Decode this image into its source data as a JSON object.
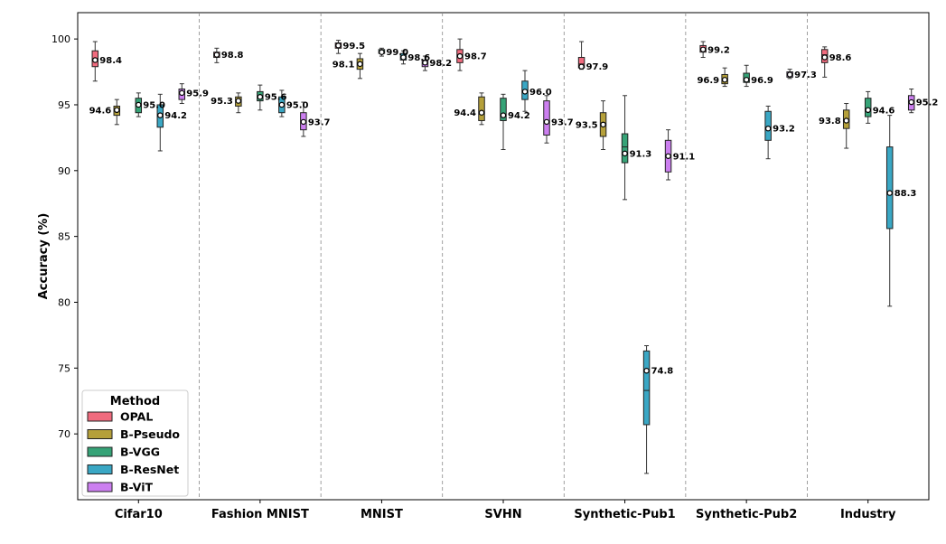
{
  "chart_data": {
    "type": "box",
    "ylabel": "Accuracy (%)",
    "ylim": [
      65,
      102
    ],
    "yticks": [
      70,
      75,
      80,
      85,
      90,
      95,
      100
    ],
    "grid": false,
    "categories": [
      "Cifar10",
      "Fashion MNIST",
      "MNIST",
      "SVHN",
      "Synthetic-Pub1",
      "Synthetic-Pub2",
      "Industry"
    ],
    "legend": {
      "title": "Method",
      "placement": "bottom-left",
      "entries": [
        "OPAL",
        "B-Pseudo",
        "B-VGG",
        "B-ResNet",
        "B-ViT"
      ]
    },
    "colors": [
      "#f06b7e",
      "#b5a03a",
      "#36a377",
      "#3aa7c4",
      "#cc7ff0"
    ],
    "series": [
      {
        "name": "OPAL",
        "boxes": [
          {
            "min": 96.8,
            "q1": 97.9,
            "median": 98.5,
            "q3": 99.1,
            "max": 99.8,
            "mean": 98.4,
            "mean_label": "98.4"
          },
          {
            "min": 98.2,
            "q1": 98.6,
            "median": 98.8,
            "q3": 99.0,
            "max": 99.3,
            "mean": 98.8,
            "mean_label": "98.8"
          },
          {
            "min": 98.9,
            "q1": 99.3,
            "median": 99.5,
            "q3": 99.7,
            "max": 99.9,
            "mean": 99.5,
            "mean_label": "99.5"
          },
          {
            "min": 97.6,
            "q1": 98.2,
            "median": 98.8,
            "q3": 99.2,
            "max": 100.0,
            "mean": 98.7,
            "mean_label": "98.7"
          },
          {
            "min": 97.7,
            "q1": 97.8,
            "median": 98.1,
            "q3": 98.6,
            "max": 99.8,
            "mean": 97.9,
            "mean_label": "97.9"
          },
          {
            "min": 98.6,
            "q1": 99.0,
            "median": 99.2,
            "q3": 99.5,
            "max": 99.8,
            "mean": 99.2,
            "mean_label": "99.2"
          },
          {
            "min": 97.1,
            "q1": 98.2,
            "median": 98.8,
            "q3": 99.2,
            "max": 99.4,
            "mean": 98.6,
            "mean_label": "98.6"
          }
        ]
      },
      {
        "name": "B-Pseudo",
        "boxes": [
          {
            "min": 93.5,
            "q1": 94.2,
            "median": 94.6,
            "q3": 94.9,
            "max": 95.4,
            "mean": 94.6,
            "mean_label": "94.6"
          },
          {
            "min": 94.4,
            "q1": 94.9,
            "median": 95.3,
            "q3": 95.6,
            "max": 95.9,
            "mean": 95.3,
            "mean_label": "95.3"
          },
          {
            "min": 97.0,
            "q1": 97.7,
            "median": 98.1,
            "q3": 98.5,
            "max": 98.9,
            "mean": 98.1,
            "mean_label": "98.1"
          },
          {
            "min": 93.5,
            "q1": 93.8,
            "median": 94.3,
            "q3": 95.6,
            "max": 95.9,
            "mean": 94.4,
            "mean_label": "94.4"
          },
          {
            "min": 91.6,
            "q1": 92.6,
            "median": 93.5,
            "q3": 94.4,
            "max": 95.3,
            "mean": 93.5,
            "mean_label": "93.5"
          },
          {
            "min": 96.4,
            "q1": 96.6,
            "median": 96.9,
            "q3": 97.3,
            "max": 97.8,
            "mean": 96.9,
            "mean_label": "96.9"
          },
          {
            "min": 91.7,
            "q1": 93.2,
            "median": 93.8,
            "q3": 94.6,
            "max": 95.1,
            "mean": 93.8,
            "mean_label": "93.8"
          }
        ]
      },
      {
        "name": "B-VGG",
        "boxes": [
          {
            "min": 94.1,
            "q1": 94.4,
            "median": 95.0,
            "q3": 95.5,
            "max": 95.9,
            "mean": 95.0,
            "mean_label": "95.0"
          },
          {
            "min": 94.6,
            "q1": 95.3,
            "median": 95.7,
            "q3": 96.0,
            "max": 96.5,
            "mean": 95.6,
            "mean_label": "95.6"
          },
          {
            "min": 98.7,
            "q1": 98.9,
            "median": 99.0,
            "q3": 99.2,
            "max": 99.3,
            "mean": 99.0,
            "mean_label": "99.0"
          },
          {
            "min": 91.6,
            "q1": 93.8,
            "median": 94.2,
            "q3": 95.5,
            "max": 95.8,
            "mean": 94.2,
            "mean_label": "94.2"
          },
          {
            "min": 87.8,
            "q1": 90.6,
            "median": 91.8,
            "q3": 92.8,
            "max": 95.7,
            "mean": 91.3,
            "mean_label": "91.3"
          },
          {
            "min": 96.4,
            "q1": 96.7,
            "median": 97.0,
            "q3": 97.4,
            "max": 98.0,
            "mean": 96.9,
            "mean_label": "96.9"
          },
          {
            "min": 93.6,
            "q1": 94.1,
            "median": 94.7,
            "q3": 95.5,
            "max": 96.0,
            "mean": 94.6,
            "mean_label": "94.6"
          }
        ]
      },
      {
        "name": "B-ResNet",
        "boxes": [
          {
            "min": 91.5,
            "q1": 93.3,
            "median": 94.3,
            "q3": 95.0,
            "max": 95.8,
            "mean": 94.2,
            "mean_label": "94.2"
          },
          {
            "min": 94.1,
            "q1": 94.4,
            "median": 95.0,
            "q3": 95.6,
            "max": 96.1,
            "mean": 95.0,
            "mean_label": "95.0"
          },
          {
            "min": 98.1,
            "q1": 98.4,
            "median": 98.6,
            "q3": 98.9,
            "max": 99.1,
            "mean": 98.6,
            "mean_label": "98.6"
          },
          {
            "min": 94.5,
            "q1": 95.4,
            "median": 96.1,
            "q3": 96.8,
            "max": 97.6,
            "mean": 96.0,
            "mean_label": "96.0"
          },
          {
            "min": 67.0,
            "q1": 70.7,
            "median": 73.3,
            "q3": 76.3,
            "max": 76.7,
            "mean": 74.8,
            "mean_label": "74.8"
          },
          {
            "min": 90.9,
            "q1": 92.3,
            "median": 93.3,
            "q3": 94.5,
            "max": 94.9,
            "mean": 93.2,
            "mean_label": "93.2"
          },
          {
            "min": 79.7,
            "q1": 85.6,
            "median": 88.3,
            "q3": 91.8,
            "max": 94.2,
            "mean": 88.3,
            "mean_label": "88.3"
          }
        ]
      },
      {
        "name": "B-ViT",
        "boxes": [
          {
            "min": 95.1,
            "q1": 95.4,
            "median": 95.9,
            "q3": 96.2,
            "max": 96.6,
            "mean": 95.9,
            "mean_label": "95.9"
          },
          {
            "min": 92.6,
            "q1": 93.1,
            "median": 93.7,
            "q3": 94.4,
            "max": 95.2,
            "mean": 93.7,
            "mean_label": "93.7"
          },
          {
            "min": 97.6,
            "q1": 97.9,
            "median": 98.2,
            "q3": 98.4,
            "max": 98.7,
            "mean": 98.2,
            "mean_label": "98.2"
          },
          {
            "min": 92.1,
            "q1": 92.7,
            "median": 93.7,
            "q3": 95.3,
            "max": 95.7,
            "mean": 93.7,
            "mean_label": "93.7"
          },
          {
            "min": 89.3,
            "q1": 89.9,
            "median": 91.1,
            "q3": 92.3,
            "max": 93.1,
            "mean": 91.1,
            "mean_label": "91.1"
          },
          {
            "min": 97.0,
            "q1": 97.1,
            "median": 97.3,
            "q3": 97.5,
            "max": 97.7,
            "mean": 97.3,
            "mean_label": "97.3"
          },
          {
            "min": 94.4,
            "q1": 94.6,
            "median": 95.2,
            "q3": 95.7,
            "max": 96.2,
            "mean": 95.2,
            "mean_label": "95.2"
          }
        ]
      }
    ]
  }
}
